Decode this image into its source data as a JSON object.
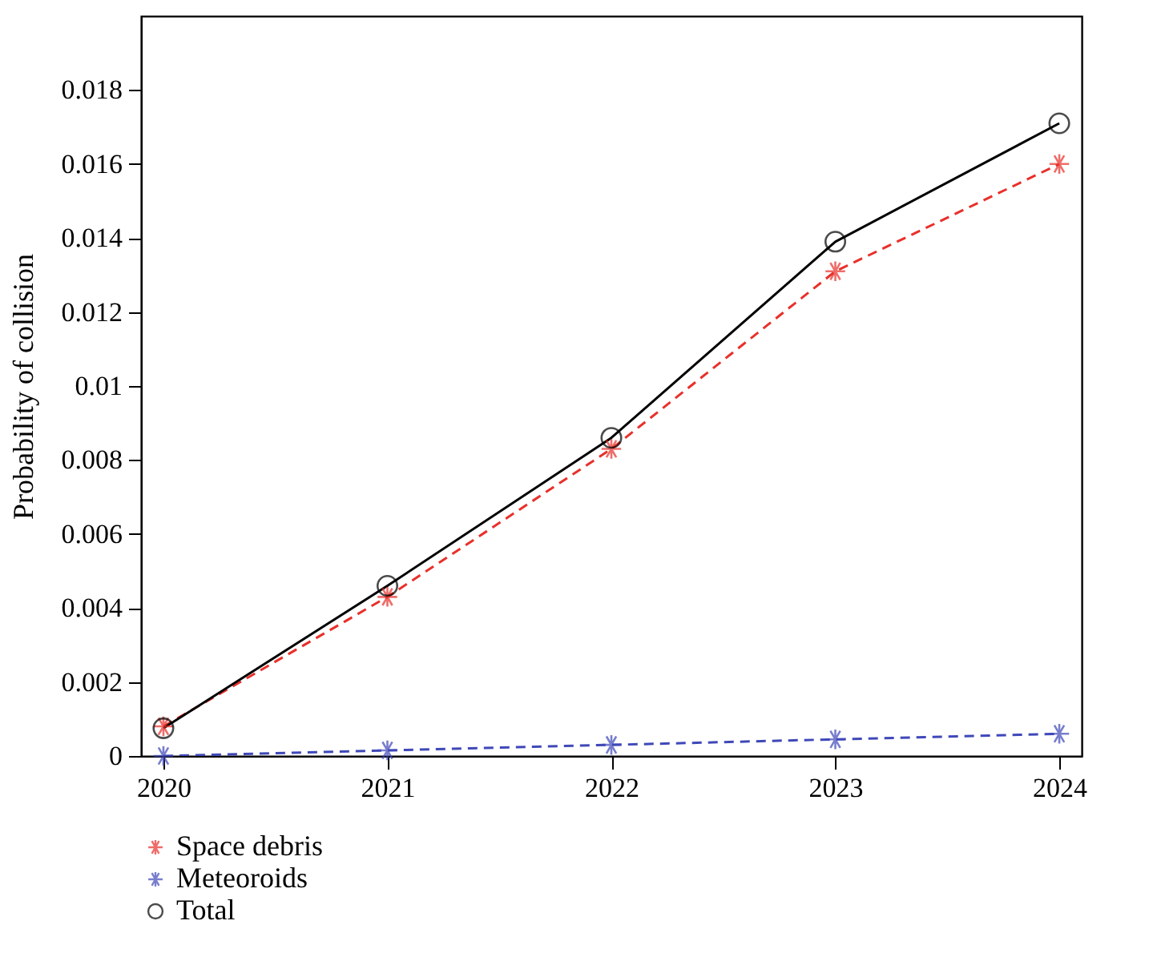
{
  "chart_data": {
    "type": "line",
    "ylabel": "Probability of collision",
    "x": [
      2020,
      2021,
      2022,
      2023,
      2024
    ],
    "xlim": [
      2019.9,
      2024.1
    ],
    "xticks": [
      2020,
      2021,
      2022,
      2023,
      2024
    ],
    "ylim": [
      0,
      0.02
    ],
    "yticks": [
      0,
      0.002,
      0.004,
      0.006,
      0.008,
      0.01,
      0.012,
      0.014,
      0.016,
      0.018
    ],
    "grid": false,
    "legend": "bottom left",
    "series": [
      {
        "name": "Space debris",
        "color": "#e8302a",
        "marker": "cross",
        "line_style": "dashed",
        "values": [
          0.0008,
          0.0043,
          0.0083,
          0.0131,
          0.016
        ]
      },
      {
        "name": "Meteoroids",
        "color": "#3f48b8",
        "marker": "cross",
        "line_style": "dashed",
        "values": [
          0,
          0.00015,
          0.0003,
          0.00045,
          0.0006
        ]
      },
      {
        "name": "Total",
        "color": "#000000",
        "marker": "circle",
        "line_style": "solid",
        "values": [
          0.00075,
          0.0046,
          0.0086,
          0.0139,
          0.0171
        ]
      }
    ]
  }
}
